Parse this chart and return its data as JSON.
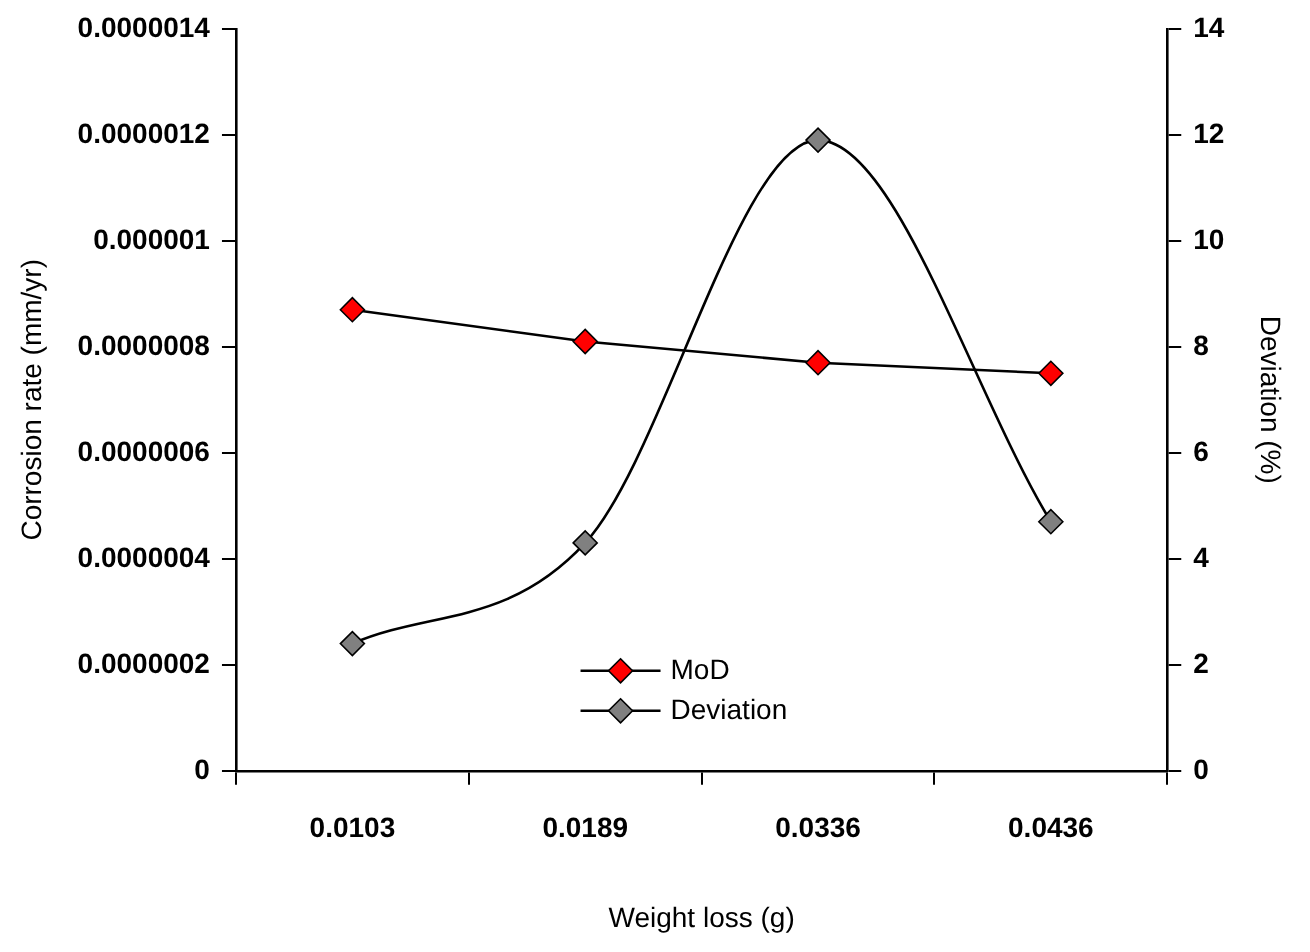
{
  "chart_data": {
    "type": "line",
    "xlabel": "Weight loss (g)",
    "ylabel": "Corrosion rate (mm/yr)",
    "y2label": "Deviation (%)",
    "categories": [
      "0.0103",
      "0.0189",
      "0.0336",
      "0.0436"
    ],
    "series": [
      {
        "name": "MoD",
        "color": "#ff0000",
        "values": [
          8.7e-07,
          8.1e-07,
          7.7e-07,
          7.5e-07
        ]
      },
      {
        "name": "Deviation",
        "color": "#808080",
        "axis": "y2",
        "values": [
          2.4,
          4.3,
          11.9,
          4.7
        ]
      }
    ],
    "ylim": [
      0,
      1.4e-06
    ],
    "yticks": [
      0,
      {
        "value": 2e-07,
        "label": "0.0000002"
      },
      {
        "value": 4e-07,
        "label": "0.0000004"
      },
      {
        "value": 6e-07,
        "label": "0.0000006"
      },
      {
        "value": 8e-07,
        "label": "0.0000008"
      },
      {
        "value": 1e-06,
        "label": "0.000001"
      },
      {
        "value": 1.2e-06,
        "label": "0.0000012"
      },
      {
        "value": 1.4e-06,
        "label": "0.0000014"
      }
    ],
    "y2lim": [
      0,
      14
    ],
    "y2ticks": [
      0,
      2,
      4,
      6,
      8,
      10,
      12,
      14
    ],
    "marker": "diamond",
    "legend": "bottom",
    "grid": false
  }
}
